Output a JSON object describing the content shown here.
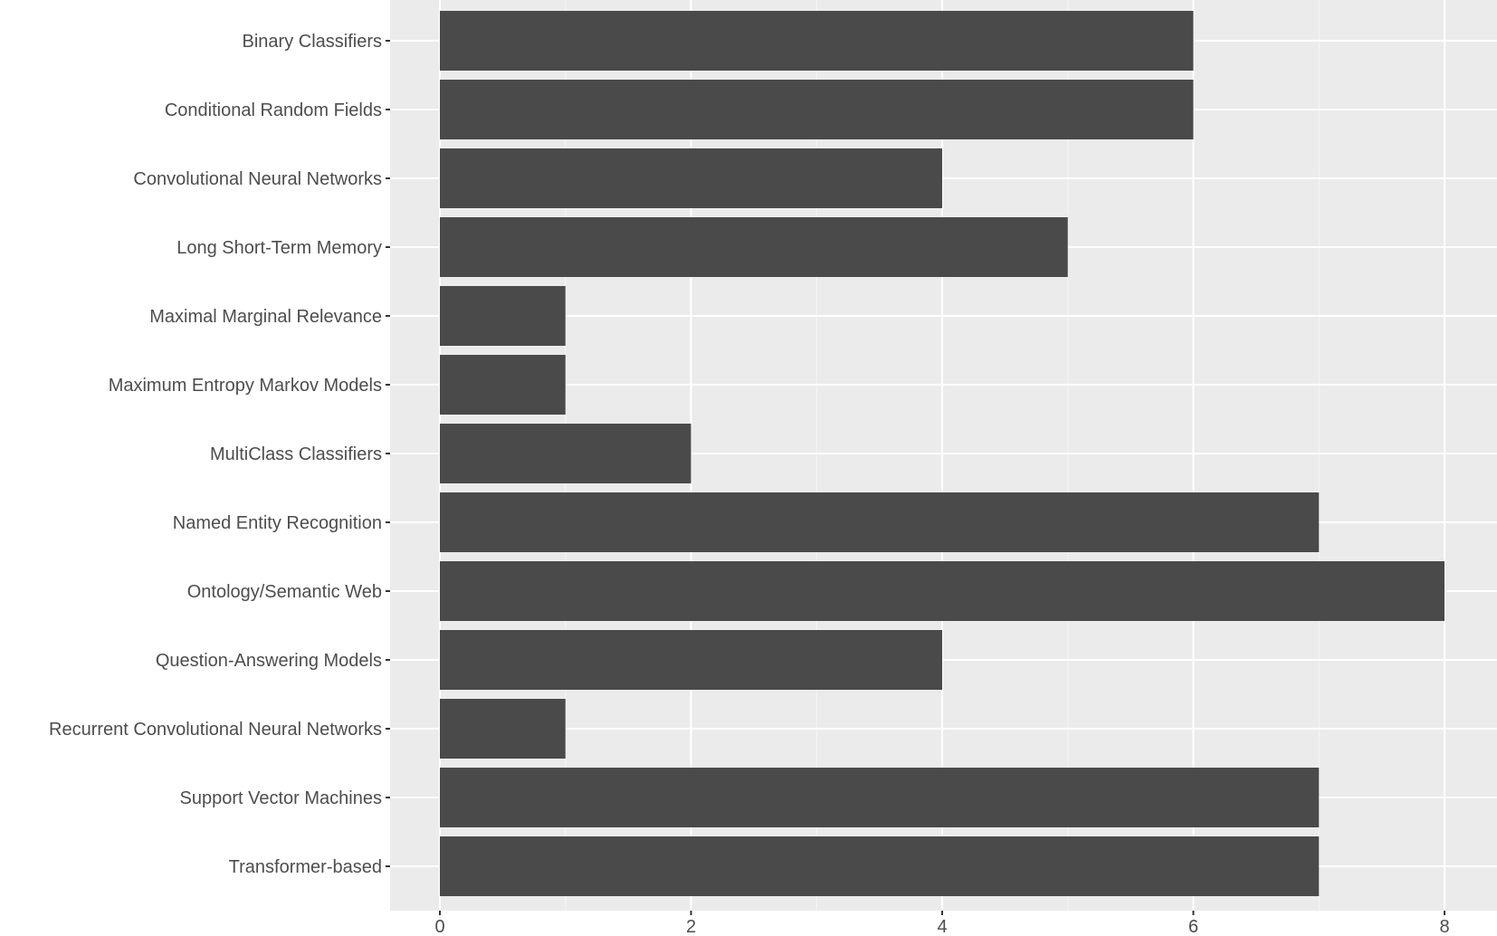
{
  "chart_data": {
    "type": "bar",
    "orientation": "horizontal",
    "title": "",
    "xlabel": "",
    "ylabel": "",
    "categories": [
      "Binary Classifiers",
      "Conditional Random Fields",
      "Convolutional Neural Networks",
      "Long Short-Term Memory",
      "Maximal Marginal Relevance",
      "Maximum Entropy Markov Models",
      "MultiClass Classifiers",
      "Named Entity Recognition",
      "Ontology/Semantic Web",
      "Question-Answering Models",
      "Recurrent Convolutional Neural Networks",
      "Support Vector Machines",
      "Transformer-based"
    ],
    "values": [
      6,
      6,
      4,
      5,
      1,
      1,
      2,
      7,
      8,
      4,
      1,
      7,
      7
    ],
    "xlim": [
      0,
      8.4
    ],
    "xticks": [
      "0",
      "2",
      "4",
      "6",
      "8"
    ],
    "grid": true,
    "bar_color": "#4a4a4a",
    "panel_color": "#ebebeb"
  }
}
